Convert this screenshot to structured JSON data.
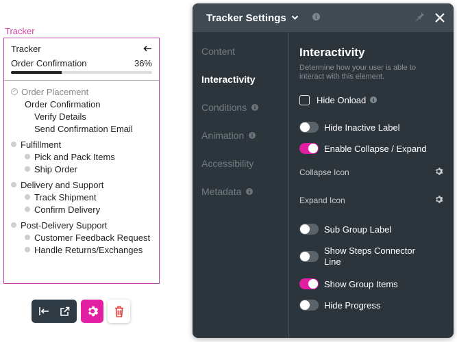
{
  "tracker": {
    "tag": "Tracker",
    "title": "Tracker",
    "progress_label": "Order Confirmation",
    "progress_percent_text": "36%",
    "progress_fraction": 0.36,
    "steps": {
      "g1": {
        "label": "Order Placement",
        "sub": "Order Confirmation",
        "items": [
          "Verify Details",
          "Send Confirmation Email"
        ]
      },
      "g2": {
        "label": "Fulfillment",
        "items": [
          "Pick and Pack Items",
          "Ship Order"
        ]
      },
      "g3": {
        "label": "Delivery and Support",
        "items": [
          "Track Shipment",
          "Confirm Delivery"
        ]
      },
      "g4": {
        "label": "Post-Delivery Support",
        "items": [
          "Customer Feedback Request",
          "Handle Returns/Exchanges"
        ]
      }
    }
  },
  "panel": {
    "title": "Tracker Settings",
    "nav": [
      "Content",
      "Interactivity",
      "Conditions",
      "Animation",
      "Accessibility",
      "Metadata"
    ],
    "section_title": "Interactivity",
    "section_desc": "Determine how your user is able to interact with this element.",
    "options": {
      "hide_onload": "Hide Onload",
      "hide_inactive_label": "Hide Inactive Label",
      "enable_collapse": "Enable Collapse / Expand",
      "collapse_icon": "Collapse Icon",
      "expand_icon": "Expand Icon",
      "sub_group_label": "Sub Group Label",
      "show_steps_connector": "Show Steps Connector Line",
      "show_group_items": "Show Group Items",
      "hide_progress": "Hide Progress"
    },
    "states": {
      "hide_onload": false,
      "hide_inactive_label": false,
      "enable_collapse": true,
      "sub_group_label": false,
      "show_steps_connector": false,
      "show_group_items": true,
      "hide_progress": false
    }
  },
  "colors": {
    "accent": "#e21fa3",
    "panel_bg": "#2d353c",
    "panel_head": "#3f4a53",
    "tracker_border": "#c23fb0"
  },
  "icons": [
    "back-arrow-icon",
    "check-circle-icon",
    "collapse-left-icon",
    "external-link-icon",
    "gear-icon",
    "trash-icon",
    "chevron-down-icon",
    "info-icon",
    "pin-icon",
    "close-icon"
  ]
}
